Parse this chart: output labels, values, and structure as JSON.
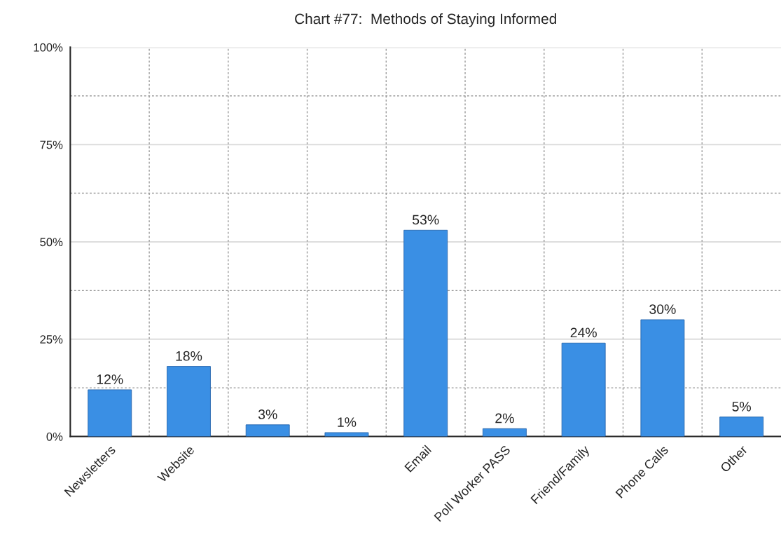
{
  "chart_data": {
    "type": "bar",
    "title": "Chart #77:  Methods of Staying Informed",
    "categories": [
      "Newsletters",
      "Website",
      null,
      null,
      "Email",
      "Poll Worker PASS",
      "Friend/Family",
      "Phone Calls",
      "Other"
    ],
    "values": [
      12,
      18,
      3,
      1,
      53,
      2,
      24,
      30,
      5
    ],
    "value_labels": [
      "12%",
      "18%",
      "3%",
      "1%",
      "53%",
      "2%",
      "24%",
      "30%",
      "5%"
    ],
    "color": "#3a8fe4",
    "ylim": [
      0,
      100
    ],
    "yticks": [
      {
        "value": 0,
        "label": "0%"
      },
      {
        "value": 12.5,
        "label": null
      },
      {
        "value": 25,
        "label": "25%"
      },
      {
        "value": 37.5,
        "label": null
      },
      {
        "value": 50,
        "label": "50%"
      },
      {
        "value": 62.5,
        "label": null
      },
      {
        "value": 75,
        "label": "75%"
      },
      {
        "value": 87.5,
        "label": null
      },
      {
        "value": 100,
        "label": "100%"
      }
    ],
    "grid": true
  }
}
